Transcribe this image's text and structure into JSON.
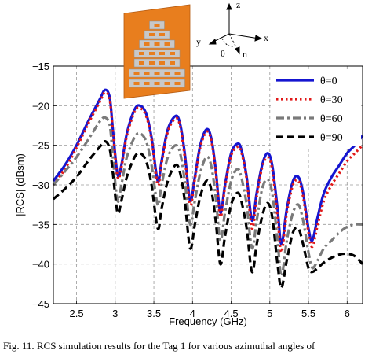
{
  "chart_data": {
    "type": "line",
    "xlabel": "Frequency (GHz)",
    "ylabel": "|RCS| (dBsm)",
    "xlim": [
      2.2,
      6.2
    ],
    "ylim": [
      -45,
      -15
    ],
    "xticks": [
      2.5,
      3,
      3.5,
      4,
      4.5,
      5,
      5.5,
      6
    ],
    "yticks": [
      -45,
      -40,
      -35,
      -30,
      -25,
      -20,
      -15
    ],
    "grid": true,
    "legend_position": "top-right",
    "series": [
      {
        "name": "θ=0",
        "color": "#1515d0",
        "style": "solid",
        "points": [
          [
            2.2,
            -29.5
          ],
          [
            2.35,
            -27.5
          ],
          [
            2.5,
            -25.0
          ],
          [
            2.65,
            -22.0
          ],
          [
            2.8,
            -19.2
          ],
          [
            2.87,
            -18.0
          ],
          [
            2.93,
            -19.0
          ],
          [
            2.97,
            -23.0
          ],
          [
            3.03,
            -28.7
          ],
          [
            3.08,
            -27.5
          ],
          [
            3.15,
            -23.5
          ],
          [
            3.25,
            -20.5
          ],
          [
            3.32,
            -20.0
          ],
          [
            3.4,
            -21.0
          ],
          [
            3.47,
            -24.0
          ],
          [
            3.55,
            -29.5
          ],
          [
            3.6,
            -27.0
          ],
          [
            3.68,
            -23.0
          ],
          [
            3.78,
            -21.3
          ],
          [
            3.84,
            -22.3
          ],
          [
            3.9,
            -26.0
          ],
          [
            3.97,
            -32.0
          ],
          [
            4.03,
            -29.0
          ],
          [
            4.1,
            -25.0
          ],
          [
            4.18,
            -23.0
          ],
          [
            4.24,
            -24.0
          ],
          [
            4.3,
            -28.0
          ],
          [
            4.36,
            -33.5
          ],
          [
            4.42,
            -30.0
          ],
          [
            4.5,
            -26.0
          ],
          [
            4.58,
            -24.8
          ],
          [
            4.63,
            -25.5
          ],
          [
            4.7,
            -29.0
          ],
          [
            4.77,
            -34.5
          ],
          [
            4.83,
            -31.0
          ],
          [
            4.9,
            -27.5
          ],
          [
            4.97,
            -26.0
          ],
          [
            5.03,
            -27.5
          ],
          [
            5.1,
            -33.0
          ],
          [
            5.15,
            -37.5
          ],
          [
            5.22,
            -33.0
          ],
          [
            5.3,
            -29.5
          ],
          [
            5.37,
            -29.0
          ],
          [
            5.43,
            -31.0
          ],
          [
            5.5,
            -35.5
          ],
          [
            5.55,
            -37.0
          ],
          [
            5.62,
            -34.0
          ],
          [
            5.7,
            -31.0
          ],
          [
            5.8,
            -29.0
          ],
          [
            5.9,
            -27.5
          ],
          [
            6.0,
            -26.0
          ],
          [
            6.1,
            -25.0
          ],
          [
            6.2,
            -23.8
          ]
        ]
      },
      {
        "name": "θ=30",
        "color": "#e01818",
        "style": "dotted",
        "points": [
          [
            2.2,
            -30.0
          ],
          [
            2.35,
            -28.0
          ],
          [
            2.5,
            -25.3
          ],
          [
            2.65,
            -22.3
          ],
          [
            2.8,
            -19.5
          ],
          [
            2.87,
            -18.3
          ],
          [
            2.93,
            -19.3
          ],
          [
            2.97,
            -23.2
          ],
          [
            3.03,
            -29.0
          ],
          [
            3.08,
            -27.8
          ],
          [
            3.15,
            -23.8
          ],
          [
            3.25,
            -20.8
          ],
          [
            3.32,
            -20.3
          ],
          [
            3.4,
            -21.3
          ],
          [
            3.47,
            -24.3
          ],
          [
            3.55,
            -30.0
          ],
          [
            3.6,
            -27.3
          ],
          [
            3.68,
            -23.3
          ],
          [
            3.78,
            -21.6
          ],
          [
            3.84,
            -22.6
          ],
          [
            3.9,
            -26.5
          ],
          [
            3.97,
            -32.5
          ],
          [
            4.03,
            -29.3
          ],
          [
            4.1,
            -25.3
          ],
          [
            4.18,
            -23.3
          ],
          [
            4.24,
            -24.3
          ],
          [
            4.3,
            -28.3
          ],
          [
            4.36,
            -34.0
          ],
          [
            4.42,
            -30.3
          ],
          [
            4.5,
            -26.3
          ],
          [
            4.58,
            -25.2
          ],
          [
            4.63,
            -25.8
          ],
          [
            4.7,
            -29.3
          ],
          [
            4.77,
            -35.5
          ],
          [
            4.83,
            -31.5
          ],
          [
            4.9,
            -27.8
          ],
          [
            4.97,
            -26.5
          ],
          [
            5.03,
            -28.0
          ],
          [
            5.1,
            -34.0
          ],
          [
            5.15,
            -38.5
          ],
          [
            5.22,
            -33.5
          ],
          [
            5.3,
            -30.0
          ],
          [
            5.37,
            -29.5
          ],
          [
            5.43,
            -31.5
          ],
          [
            5.5,
            -36.0
          ],
          [
            5.55,
            -37.8
          ],
          [
            5.62,
            -35.0
          ],
          [
            5.7,
            -32.0
          ],
          [
            5.8,
            -30.0
          ],
          [
            5.9,
            -28.5
          ],
          [
            6.0,
            -27.0
          ],
          [
            6.1,
            -26.0
          ],
          [
            6.2,
            -25.0
          ]
        ]
      },
      {
        "name": "θ=60",
        "color": "#7a7a7a",
        "style": "dashdot",
        "points": [
          [
            2.2,
            -30.0
          ],
          [
            2.35,
            -28.3
          ],
          [
            2.5,
            -26.5
          ],
          [
            2.65,
            -24.3
          ],
          [
            2.8,
            -22.0
          ],
          [
            2.87,
            -21.5
          ],
          [
            2.93,
            -22.5
          ],
          [
            2.97,
            -26.5
          ],
          [
            3.03,
            -32.0
          ],
          [
            3.08,
            -30.0
          ],
          [
            3.15,
            -26.5
          ],
          [
            3.25,
            -24.0
          ],
          [
            3.32,
            -23.5
          ],
          [
            3.4,
            -24.5
          ],
          [
            3.47,
            -27.5
          ],
          [
            3.55,
            -32.5
          ],
          [
            3.6,
            -30.0
          ],
          [
            3.68,
            -26.5
          ],
          [
            3.78,
            -25.0
          ],
          [
            3.84,
            -26.0
          ],
          [
            3.9,
            -29.5
          ],
          [
            3.97,
            -35.0
          ],
          [
            4.03,
            -32.0
          ],
          [
            4.1,
            -28.5
          ],
          [
            4.18,
            -26.5
          ],
          [
            4.24,
            -27.5
          ],
          [
            4.3,
            -31.5
          ],
          [
            4.36,
            -37.0
          ],
          [
            4.42,
            -33.5
          ],
          [
            4.5,
            -29.5
          ],
          [
            4.58,
            -28.0
          ],
          [
            4.63,
            -29.0
          ],
          [
            4.7,
            -32.5
          ],
          [
            4.77,
            -38.0
          ],
          [
            4.83,
            -34.5
          ],
          [
            4.9,
            -30.5
          ],
          [
            4.97,
            -29.3
          ],
          [
            5.03,
            -31.0
          ],
          [
            5.1,
            -37.0
          ],
          [
            5.15,
            -41.5
          ],
          [
            5.22,
            -37.0
          ],
          [
            5.3,
            -33.5
          ],
          [
            5.37,
            -32.5
          ],
          [
            5.43,
            -34.5
          ],
          [
            5.5,
            -38.5
          ],
          [
            5.55,
            -40.5
          ],
          [
            5.62,
            -39.5
          ],
          [
            5.7,
            -38.0
          ],
          [
            5.8,
            -37.0
          ],
          [
            5.9,
            -36.0
          ],
          [
            6.0,
            -35.3
          ],
          [
            6.1,
            -35.0
          ],
          [
            6.2,
            -35.0
          ]
        ]
      },
      {
        "name": "θ=90",
        "color": "#000000",
        "style": "dashed",
        "points": [
          [
            2.2,
            -31.8
          ],
          [
            2.35,
            -30.5
          ],
          [
            2.5,
            -29.0
          ],
          [
            2.65,
            -27.0
          ],
          [
            2.8,
            -25.2
          ],
          [
            2.87,
            -24.5
          ],
          [
            2.93,
            -25.5
          ],
          [
            2.97,
            -28.5
          ],
          [
            3.03,
            -33.5
          ],
          [
            3.08,
            -32.0
          ],
          [
            3.15,
            -29.0
          ],
          [
            3.25,
            -26.5
          ],
          [
            3.32,
            -26.0
          ],
          [
            3.4,
            -27.0
          ],
          [
            3.47,
            -30.0
          ],
          [
            3.55,
            -35.5
          ],
          [
            3.6,
            -33.0
          ],
          [
            3.68,
            -29.5
          ],
          [
            3.78,
            -27.5
          ],
          [
            3.84,
            -28.5
          ],
          [
            3.9,
            -32.0
          ],
          [
            3.97,
            -38.0
          ],
          [
            4.03,
            -35.0
          ],
          [
            4.1,
            -31.5
          ],
          [
            4.18,
            -29.5
          ],
          [
            4.24,
            -30.5
          ],
          [
            4.3,
            -34.5
          ],
          [
            4.36,
            -40.0
          ],
          [
            4.42,
            -36.5
          ],
          [
            4.5,
            -32.5
          ],
          [
            4.58,
            -31.0
          ],
          [
            4.63,
            -32.0
          ],
          [
            4.7,
            -35.5
          ],
          [
            4.77,
            -41.0
          ],
          [
            4.83,
            -37.5
          ],
          [
            4.9,
            -34.0
          ],
          [
            4.97,
            -32.3
          ],
          [
            5.03,
            -34.0
          ],
          [
            5.1,
            -40.0
          ],
          [
            5.15,
            -43.0
          ],
          [
            5.22,
            -39.5
          ],
          [
            5.3,
            -36.0
          ],
          [
            5.37,
            -35.5
          ],
          [
            5.43,
            -37.5
          ],
          [
            5.5,
            -40.5
          ],
          [
            5.55,
            -41.0
          ],
          [
            5.62,
            -40.5
          ],
          [
            5.7,
            -39.8
          ],
          [
            5.8,
            -39.2
          ],
          [
            5.9,
            -38.8
          ],
          [
            6.0,
            -38.7
          ],
          [
            6.1,
            -39.0
          ],
          [
            6.2,
            -40.0
          ]
        ]
      }
    ],
    "inset": {
      "coord_labels": {
        "z": "z",
        "x": "x",
        "y": "y",
        "n": "n",
        "theta": "θ"
      },
      "tag_color": "#e87e1e",
      "slot_color": "#c8c8c8"
    }
  },
  "caption": "Fig. 11.  RCS simulation results for the Tag 1  for various azimuthal angles of"
}
